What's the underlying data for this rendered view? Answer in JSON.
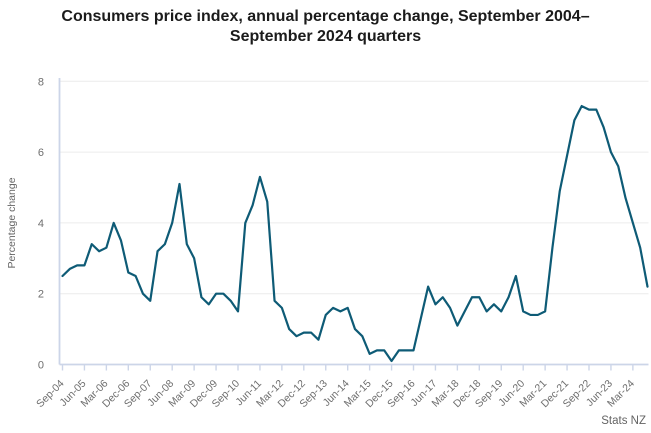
{
  "title": "Consumers price index, annual percentage change, September 2004–September 2024 quarters",
  "source": "Stats NZ",
  "colors": {
    "line": "#0e5b76",
    "gridline": "#ececec",
    "axis": "#ccd5e8",
    "tick_text": "#6e6e6e",
    "title_text": "#1b1b1b"
  },
  "chart_data": {
    "type": "line",
    "title": "Consumers price index, annual percentage change, September 2004–September 2024 quarters",
    "xlabel": "",
    "ylabel": "Percentage change",
    "ylim": [
      0,
      8
    ],
    "yticks": [
      0,
      2,
      4,
      6,
      8
    ],
    "grid": "horizontal",
    "legend": "none",
    "tick_interval": 3,
    "x_tick_labels": [
      "Sep-04",
      "Jun-05",
      "Mar-06",
      "Dec-06",
      "Sep-07",
      "Jun-08",
      "Mar-09",
      "Dec-09",
      "Sep-10",
      "Jun-11",
      "Mar-12",
      "Dec-12",
      "Sep-13",
      "Jun-14",
      "Mar-15",
      "Dec-15",
      "Sep-16",
      "Jun-17",
      "Mar-18",
      "Dec-18",
      "Sep-19",
      "Jun-20",
      "Mar-21",
      "Dec-21",
      "Sep-22",
      "Jun-23",
      "Mar-24"
    ],
    "categories": [
      "Sep-04",
      "Dec-04",
      "Mar-05",
      "Jun-05",
      "Sep-05",
      "Dec-05",
      "Mar-06",
      "Jun-06",
      "Sep-06",
      "Dec-06",
      "Mar-07",
      "Jun-07",
      "Sep-07",
      "Dec-07",
      "Mar-08",
      "Jun-08",
      "Sep-08",
      "Dec-08",
      "Mar-09",
      "Jun-09",
      "Sep-09",
      "Dec-09",
      "Mar-10",
      "Jun-10",
      "Sep-10",
      "Dec-10",
      "Mar-11",
      "Jun-11",
      "Sep-11",
      "Dec-11",
      "Mar-12",
      "Jun-12",
      "Sep-12",
      "Dec-12",
      "Mar-13",
      "Jun-13",
      "Sep-13",
      "Dec-13",
      "Mar-14",
      "Jun-14",
      "Sep-14",
      "Dec-14",
      "Mar-15",
      "Jun-15",
      "Sep-15",
      "Dec-15",
      "Mar-16",
      "Jun-16",
      "Sep-16",
      "Dec-16",
      "Mar-17",
      "Jun-17",
      "Sep-17",
      "Dec-17",
      "Mar-18",
      "Jun-18",
      "Sep-18",
      "Dec-18",
      "Mar-19",
      "Jun-19",
      "Sep-19",
      "Dec-19",
      "Mar-20",
      "Jun-20",
      "Sep-20",
      "Dec-20",
      "Mar-21",
      "Jun-21",
      "Sep-21",
      "Dec-21",
      "Mar-22",
      "Jun-22",
      "Sep-22",
      "Dec-22",
      "Mar-23",
      "Jun-23",
      "Sep-23",
      "Dec-23",
      "Mar-24",
      "Jun-24",
      "Sep-24"
    ],
    "values": [
      2.5,
      2.7,
      2.8,
      2.8,
      3.4,
      3.2,
      3.3,
      4.0,
      3.5,
      2.6,
      2.5,
      2.0,
      1.8,
      3.2,
      3.4,
      4.0,
      5.1,
      3.4,
      3.0,
      1.9,
      1.7,
      2.0,
      2.0,
      1.8,
      1.5,
      4.0,
      4.5,
      5.3,
      4.6,
      1.8,
      1.6,
      1.0,
      0.8,
      0.9,
      0.9,
      0.7,
      1.4,
      1.6,
      1.5,
      1.6,
      1.0,
      0.8,
      0.3,
      0.4,
      0.4,
      0.1,
      0.4,
      0.4,
      0.4,
      1.3,
      2.2,
      1.7,
      1.9,
      1.6,
      1.1,
      1.5,
      1.9,
      1.9,
      1.5,
      1.7,
      1.5,
      1.9,
      2.5,
      1.5,
      1.4,
      1.4,
      1.5,
      3.3,
      4.9,
      5.9,
      6.9,
      7.3,
      7.2,
      7.2,
      6.7,
      6.0,
      5.6,
      4.7,
      4.0,
      3.3,
      2.2
    ]
  }
}
